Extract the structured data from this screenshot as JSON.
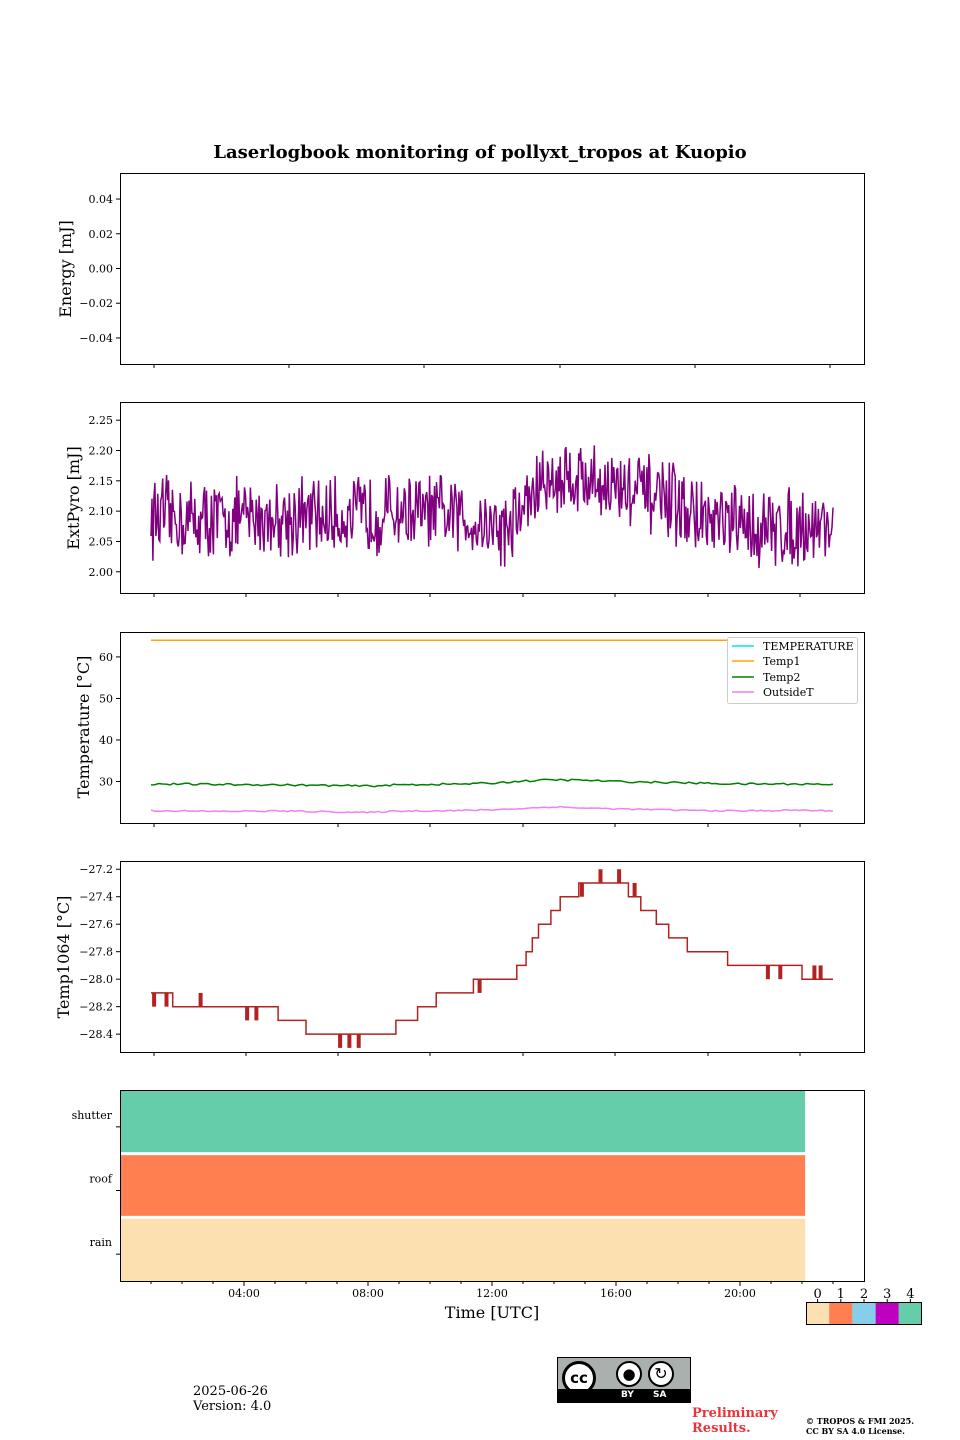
{
  "title": "Laserlogbook monitoring of pollyxt_tropos at Kuopio",
  "date_text": "2025-06-26",
  "version_text": "Version: 4.0",
  "preliminary_text": "Preliminary Results.",
  "copyright_line1": "© TROPOS & FMI 2025.",
  "copyright_line2": "CC BY SA 4.0 License.",
  "license_badge": {
    "by": "BY",
    "sa": "SA",
    "cc": "cc"
  },
  "colors": {
    "extpyro": "#800080",
    "temperature": "#00e5ee",
    "temp1": "#ffa500",
    "temp2": "#008000",
    "outsideT": "#ee82ee",
    "temp1064": "#b22222"
  },
  "chart_data": [
    {
      "type": "line",
      "id": "energy",
      "ylabel": "Energy [mJ]",
      "ylim": [
        -0.055,
        0.055
      ],
      "yticks": [
        "0.04",
        "0.02",
        "0.00",
        "−0.02",
        "−0.04"
      ],
      "ytick_values": [
        0.04,
        0.02,
        0.0,
        -0.02,
        -0.04
      ],
      "series": []
    },
    {
      "type": "line",
      "id": "extpyro",
      "ylabel": "ExtPyro [mJ]",
      "ylim": [
        1.965,
        2.28
      ],
      "yticks": [
        "2.25",
        "2.20",
        "2.15",
        "2.10",
        "2.05",
        "2.00"
      ],
      "ytick_values": [
        2.25,
        2.2,
        2.15,
        2.1,
        2.05,
        2.0
      ],
      "series": [
        {
          "color": "#800080",
          "x_range_hours": [
            1,
            23
          ],
          "trend": [
            [
              1,
              2.09
            ],
            [
              3,
              2.085
            ],
            [
              5,
              2.09
            ],
            [
              7,
              2.09
            ],
            [
              9,
              2.1
            ],
            [
              11,
              2.09
            ],
            [
              12.5,
              2.07
            ],
            [
              13.5,
              2.14
            ],
            [
              14.5,
              2.16
            ],
            [
              16,
              2.14
            ],
            [
              17.5,
              2.12
            ],
            [
              19,
              2.08
            ],
            [
              21,
              2.07
            ],
            [
              23,
              2.08
            ]
          ],
          "range": [
            1.98,
            2.265
          ]
        }
      ]
    },
    {
      "type": "line",
      "id": "temperature",
      "ylabel": "Temperature [°C]",
      "ylim": [
        20,
        66
      ],
      "yticks": [
        "60",
        "50",
        "40",
        "30"
      ],
      "ytick_values": [
        60,
        50,
        40,
        30
      ],
      "legend": [
        "TEMPERATURE",
        "Temp1",
        "Temp2",
        "OutsideT"
      ],
      "legend_position": "upper right",
      "series": [
        {
          "name": "TEMPERATURE",
          "color": "#00e5ee",
          "values": []
        },
        {
          "name": "Temp1",
          "color": "#ffa500",
          "x": [
            1,
            23
          ],
          "values": [
            64,
            64
          ]
        },
        {
          "name": "Temp2",
          "color": "#008000",
          "x": [
            1,
            3,
            5,
            7,
            8,
            9,
            11,
            12,
            13,
            14,
            15,
            16,
            18,
            20,
            22,
            23
          ],
          "values": [
            29.4,
            29.3,
            29.2,
            29.0,
            28.9,
            29.2,
            29.4,
            29.6,
            30.1,
            30.4,
            30.3,
            30.0,
            29.7,
            29.4,
            29.4,
            29.3
          ]
        },
        {
          "name": "OutsideT",
          "color": "#ee82ee",
          "x": [
            1,
            3,
            5,
            7,
            8,
            9,
            11,
            12,
            13,
            14,
            15,
            16,
            18,
            20,
            22,
            23
          ],
          "values": [
            23.0,
            22.8,
            22.9,
            22.7,
            22.5,
            22.9,
            23.0,
            23.2,
            23.5,
            23.9,
            23.6,
            23.4,
            23.1,
            22.9,
            23.1,
            22.9
          ]
        }
      ]
    },
    {
      "type": "line",
      "id": "temp1064",
      "ylabel": "Temp1064 [°C]",
      "ylim": [
        -28.53,
        -27.14
      ],
      "yticks": [
        "−27.2",
        "−27.4",
        "−27.6",
        "−27.8",
        "−28.0",
        "−28.2",
        "−28.4"
      ],
      "ytick_values": [
        -27.2,
        -27.4,
        -27.6,
        -27.8,
        -28.0,
        -28.2,
        -28.4
      ],
      "series": [
        {
          "color": "#b22222",
          "steps": [
            [
              1,
              -28.1
            ],
            [
              1.7,
              -28.2
            ],
            [
              5.1,
              -28.3
            ],
            [
              6,
              -28.4
            ],
            [
              7.2,
              -28.4
            ],
            [
              8.9,
              -28.3
            ],
            [
              9.6,
              -28.2
            ],
            [
              10.2,
              -28.1
            ],
            [
              11.4,
              -28.0
            ],
            [
              12.8,
              -27.9
            ],
            [
              13.1,
              -27.8
            ],
            [
              13.3,
              -27.7
            ],
            [
              13.5,
              -27.6
            ],
            [
              13.9,
              -27.5
            ],
            [
              14.2,
              -27.4
            ],
            [
              14.8,
              -27.3
            ],
            [
              16.4,
              -27.4
            ],
            [
              16.8,
              -27.5
            ],
            [
              17.3,
              -27.6
            ],
            [
              17.7,
              -27.7
            ],
            [
              18.3,
              -27.8
            ],
            [
              19.6,
              -27.9
            ],
            [
              22,
              -28.0
            ],
            [
              23,
              -28.0
            ]
          ],
          "spikes": [
            [
              1.1,
              -28.2
            ],
            [
              1.5,
              -28.2
            ],
            [
              2.6,
              -28.1
            ],
            [
              4.1,
              -28.3
            ],
            [
              4.4,
              -28.3
            ],
            [
              7.1,
              -28.5
            ],
            [
              7.4,
              -28.5
            ],
            [
              7.7,
              -28.5
            ],
            [
              10.7,
              -28.1
            ],
            [
              11.6,
              -28.1
            ],
            [
              11.9,
              -28.0
            ],
            [
              14.1,
              -27.5
            ],
            [
              14.9,
              -27.4
            ],
            [
              15.5,
              -27.2
            ],
            [
              16.1,
              -27.2
            ],
            [
              16.6,
              -27.3
            ],
            [
              18.0,
              -27.7
            ],
            [
              18.4,
              -27.8
            ],
            [
              20.9,
              -28.0
            ],
            [
              21.3,
              -28.0
            ],
            [
              22.4,
              -27.9
            ],
            [
              22.6,
              -27.9
            ]
          ]
        }
      ]
    },
    {
      "type": "heatmap",
      "id": "status",
      "rows": [
        "shutter",
        "roof",
        "rain"
      ],
      "row_values": [
        4,
        1,
        0
      ],
      "x_range_hours": [
        0,
        22.1
      ],
      "xlim_hours": [
        0,
        24
      ],
      "xticks": [
        "04:00",
        "08:00",
        "12:00",
        "16:00",
        "20:00"
      ],
      "xtick_hours": [
        4,
        8,
        12,
        16,
        20
      ],
      "xlabel": "Time [UTC]",
      "colorbar": {
        "labels": [
          "0",
          "1",
          "2",
          "3",
          "4"
        ],
        "colors": [
          "#fde0b0",
          "#ff7f50",
          "#87ceeb",
          "#c000c0",
          "#66cdaa"
        ]
      }
    }
  ]
}
